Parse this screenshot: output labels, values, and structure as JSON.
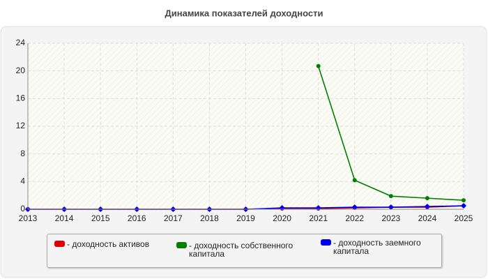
{
  "chart_data": {
    "type": "line",
    "title": "Динамика показателей доходности",
    "categories": [
      "2013",
      "2014",
      "2015",
      "2016",
      "2017",
      "2018",
      "2019",
      "2020",
      "2021",
      "2022",
      "2023",
      "2024",
      "2025"
    ],
    "series": [
      {
        "name": "- доходность активов",
        "color": "#e00000",
        "marker": "circle",
        "values": [
          0,
          0,
          0,
          0,
          0,
          0,
          0,
          0.1,
          0.1,
          0.2,
          0.3,
          0.3,
          0.5
        ]
      },
      {
        "name": "- доходность собственного капитала",
        "color": "#008000",
        "marker": "circle",
        "values": [
          null,
          null,
          null,
          null,
          null,
          null,
          null,
          null,
          20.7,
          4.2,
          1.9,
          1.6,
          1.3
        ]
      },
      {
        "name": "- доходность заемного капитала",
        "color": "#0000ee",
        "marker": "diamond",
        "values": [
          0,
          0,
          0,
          0,
          0,
          0,
          0,
          0.2,
          0.2,
          0.3,
          0.3,
          0.4,
          0.5
        ]
      }
    ],
    "ylim": [
      0,
      24
    ],
    "yticks": [
      0,
      4,
      8,
      12,
      16,
      20,
      24
    ],
    "grid": true,
    "legend": "bottom"
  }
}
